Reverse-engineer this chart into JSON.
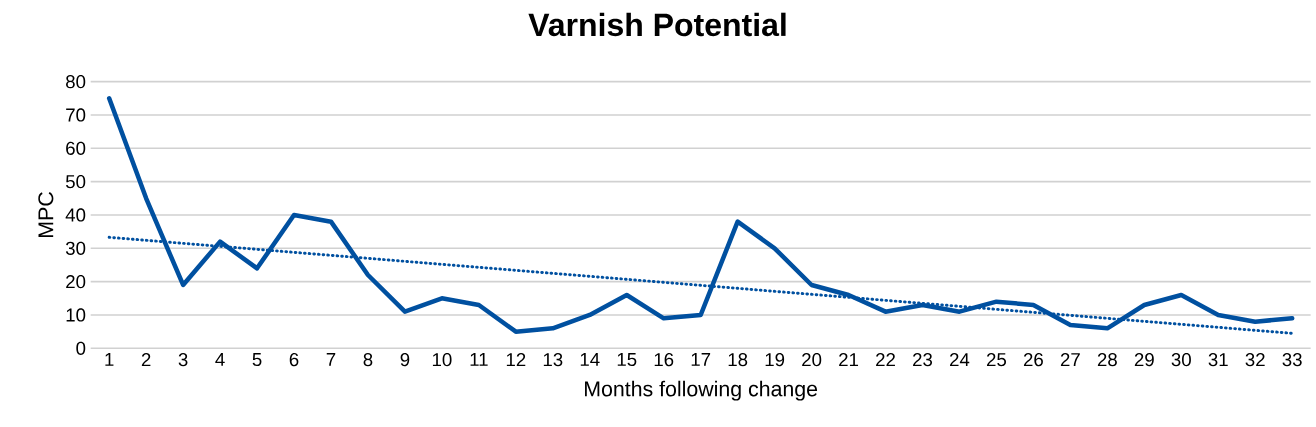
{
  "chart_data": {
    "type": "line",
    "title": "Varnish Potential",
    "xlabel": "Months following change",
    "ylabel": "MPC",
    "x": [
      1,
      2,
      3,
      4,
      5,
      6,
      7,
      8,
      9,
      10,
      11,
      12,
      13,
      14,
      15,
      16,
      17,
      18,
      19,
      20,
      21,
      22,
      23,
      24,
      25,
      26,
      27,
      28,
      29,
      30,
      31,
      32,
      33
    ],
    "xlim": [
      0.5,
      33.5
    ],
    "xticks": [
      1,
      2,
      3,
      4,
      5,
      6,
      7,
      8,
      9,
      10,
      11,
      12,
      13,
      14,
      15,
      16,
      17,
      18,
      19,
      20,
      21,
      22,
      23,
      24,
      25,
      26,
      27,
      28,
      29,
      30,
      31,
      32,
      33
    ],
    "ylim": [
      0,
      80
    ],
    "yticks": [
      0,
      10,
      20,
      30,
      40,
      50,
      60,
      70,
      80
    ],
    "grid": "y",
    "marker": "none",
    "series": [
      {
        "color": "#0050a0",
        "line_style": "solid",
        "values": [
          75,
          45,
          19,
          32,
          24,
          40,
          38,
          22,
          11,
          15,
          13,
          5,
          6,
          10,
          16,
          9,
          10,
          38,
          30,
          19,
          16,
          11,
          13,
          11,
          14,
          13,
          7,
          6,
          13,
          16,
          10,
          8,
          9
        ]
      },
      {
        "type": "line",
        "color": "#0050a0",
        "line_style": "dotted",
        "x": [
          1,
          33
        ],
        "values": [
          33.3,
          4.5
        ]
      }
    ]
  }
}
